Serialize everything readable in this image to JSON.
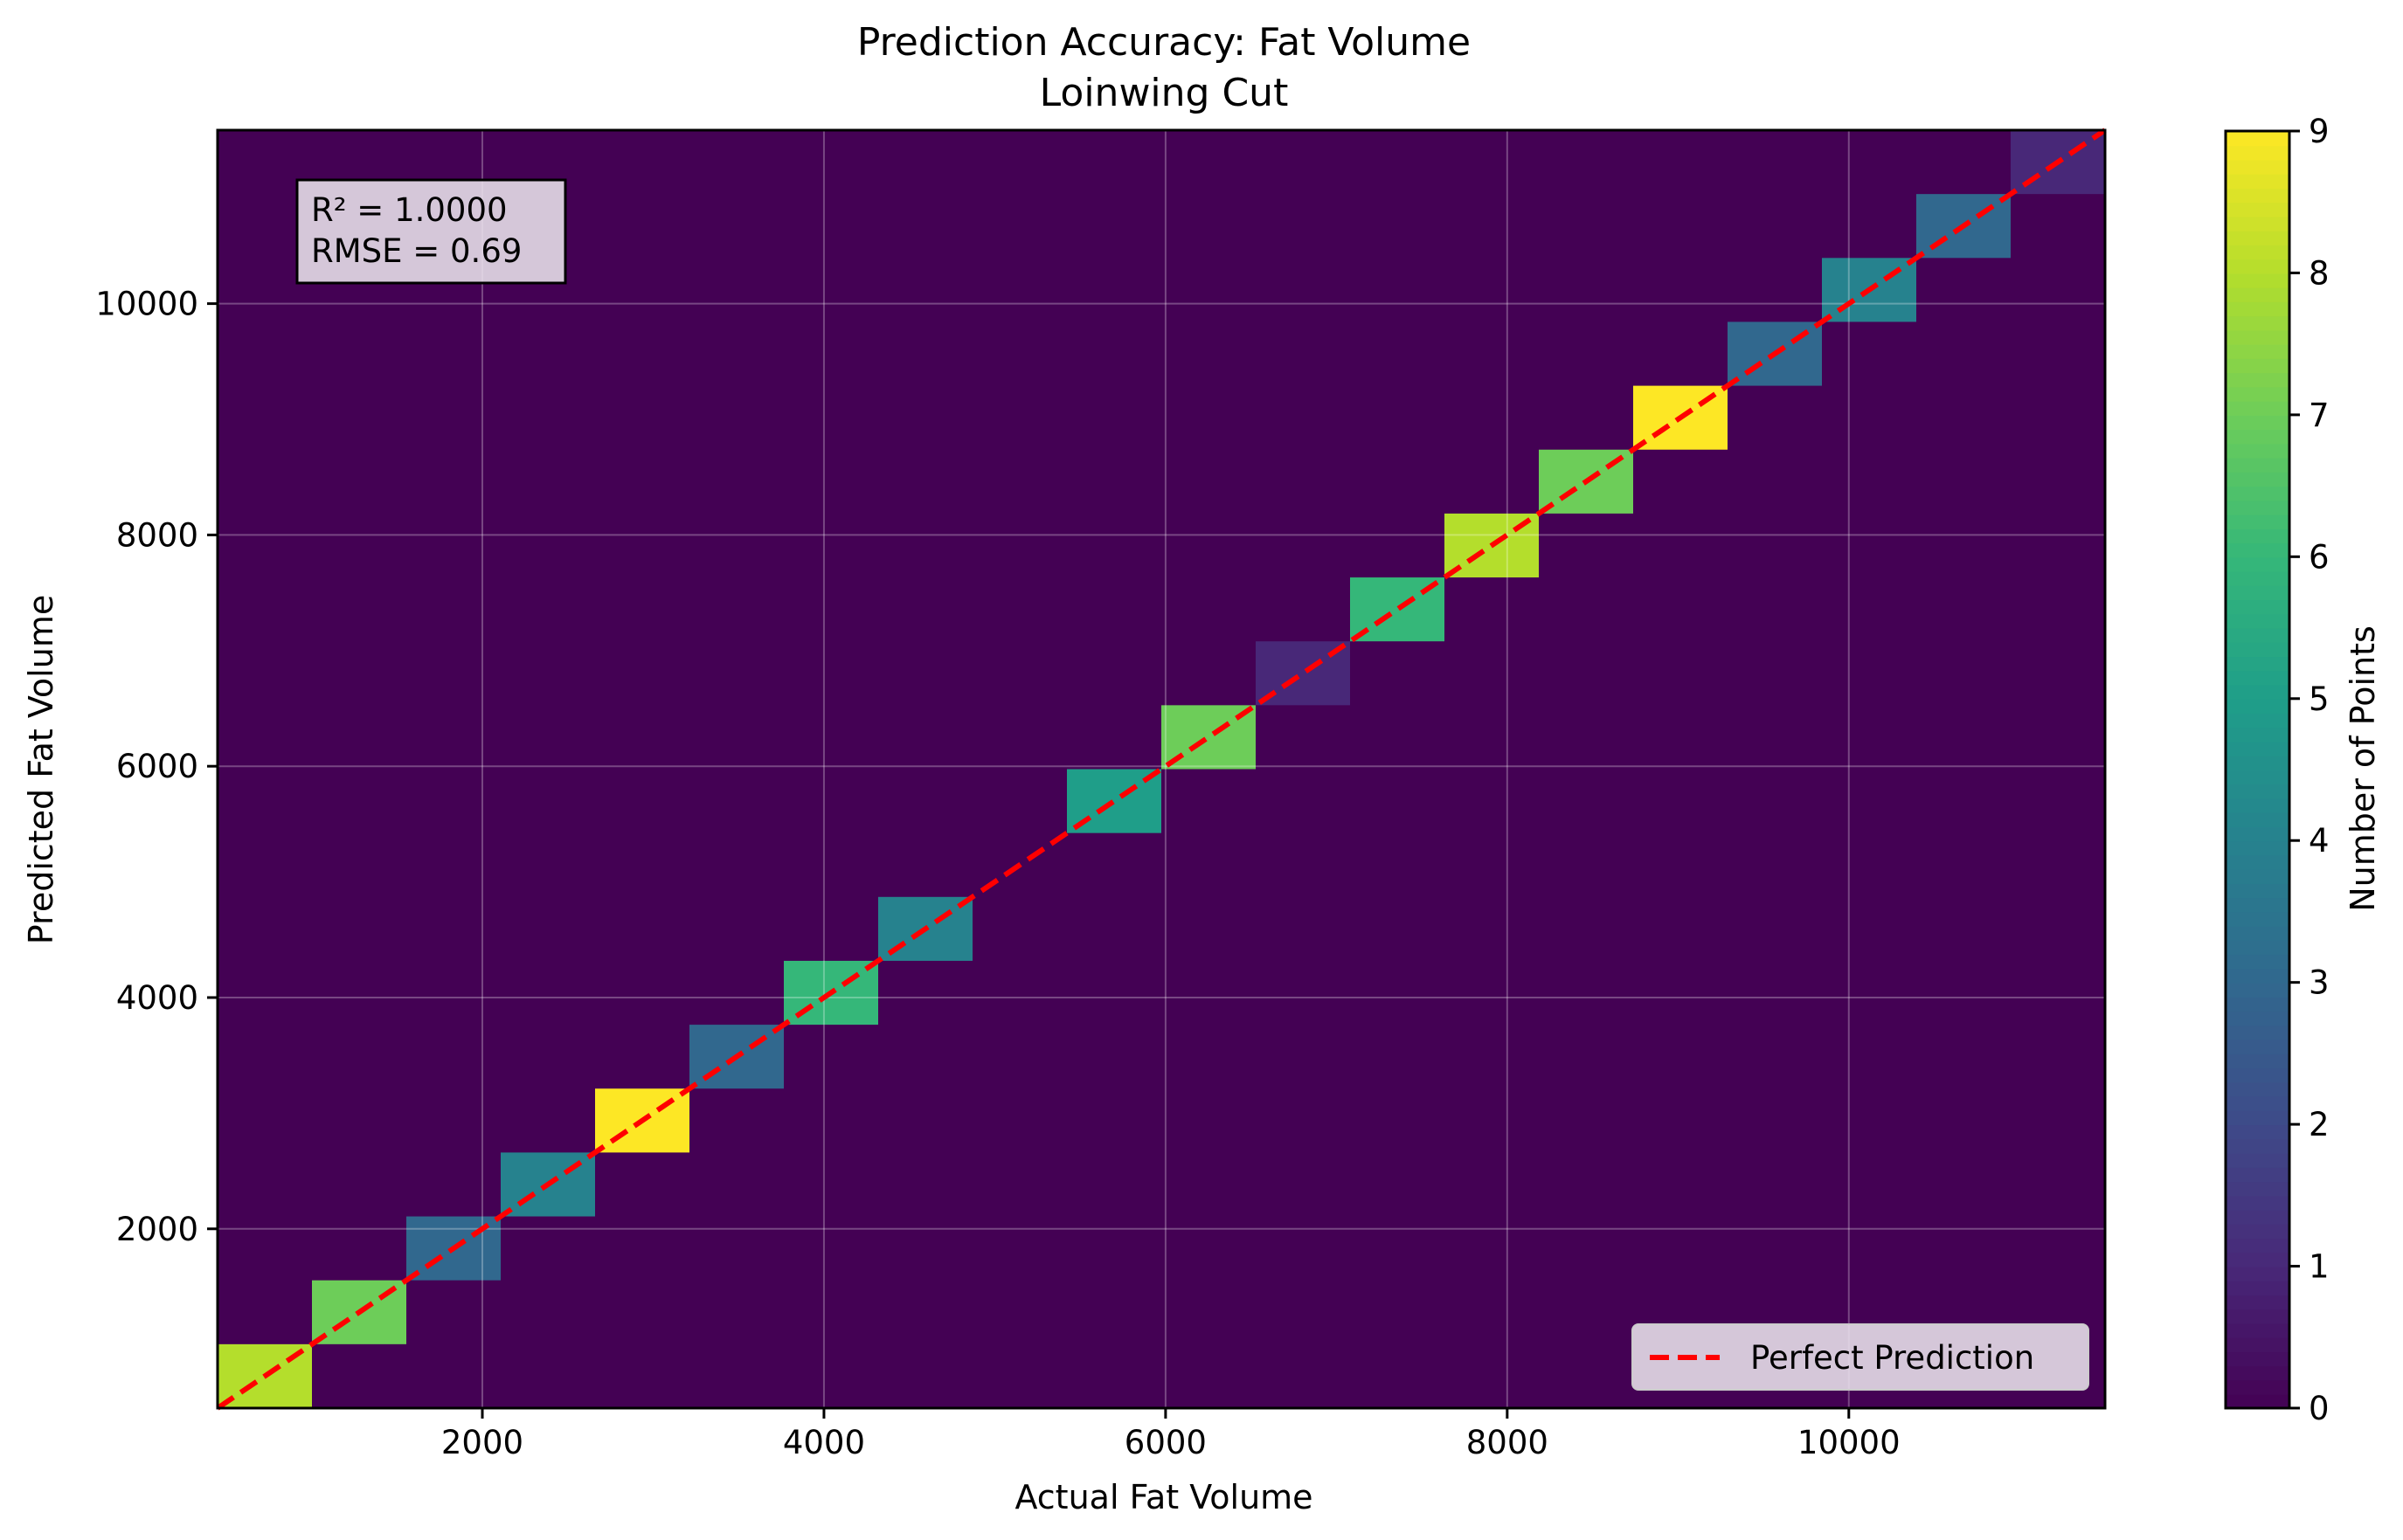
{
  "chart_data": {
    "type": "heatmap",
    "title": "Prediction Accuracy: Fat Volume",
    "subtitle": "Loinwing Cut",
    "xlabel": "Actual Fat Volume",
    "ylabel": "Predicted Fat Volume",
    "xlim": [
      450,
      11500
    ],
    "ylim": [
      450,
      11500
    ],
    "xticks": [
      2000,
      4000,
      6000,
      8000,
      10000
    ],
    "yticks": [
      2000,
      4000,
      6000,
      8000,
      10000
    ],
    "grid": true,
    "colormap": "viridis",
    "background_color": "#440154",
    "bin_width": 552.5,
    "bins": [
      {
        "x0": 450,
        "y0": 450,
        "count": 8
      },
      {
        "x0": 1002.5,
        "y0": 1002.5,
        "count": 7
      },
      {
        "x0": 1555,
        "y0": 1555,
        "count": 3
      },
      {
        "x0": 2107.5,
        "y0": 2107.5,
        "count": 4
      },
      {
        "x0": 2660,
        "y0": 2660,
        "count": 9
      },
      {
        "x0": 3212.5,
        "y0": 3212.5,
        "count": 3
      },
      {
        "x0": 3765,
        "y0": 3765,
        "count": 6
      },
      {
        "x0": 4317.5,
        "y0": 4317.5,
        "count": 4
      },
      {
        "x0": 5422.5,
        "y0": 5422.5,
        "count": 5
      },
      {
        "x0": 5975,
        "y0": 5975,
        "count": 7
      },
      {
        "x0": 6527.5,
        "y0": 6527.5,
        "count": 1
      },
      {
        "x0": 7080,
        "y0": 7080,
        "count": 6
      },
      {
        "x0": 7632.5,
        "y0": 7632.5,
        "count": 8
      },
      {
        "x0": 8185,
        "y0": 8185,
        "count": 7
      },
      {
        "x0": 8737.5,
        "y0": 8737.5,
        "count": 9
      },
      {
        "x0": 9290,
        "y0": 9290,
        "count": 3
      },
      {
        "x0": 9842.5,
        "y0": 9842.5,
        "count": 4
      },
      {
        "x0": 10395,
        "y0": 10395,
        "count": 3
      },
      {
        "x0": 10947.5,
        "y0": 10947.5,
        "count": 1
      }
    ],
    "reference_line": {
      "label": "Perfect Prediction",
      "color": "#ff0000",
      "style": "dashed"
    },
    "stats": {
      "r2": "R² = 1.0000",
      "rmse": "RMSE = 0.69"
    },
    "legend": {
      "position": "lower-right"
    },
    "colorbar": {
      "label": "Number of Points",
      "min": 0,
      "max": 9,
      "ticks": [
        0,
        1,
        2,
        3,
        4,
        5,
        6,
        7,
        8,
        9
      ]
    }
  }
}
